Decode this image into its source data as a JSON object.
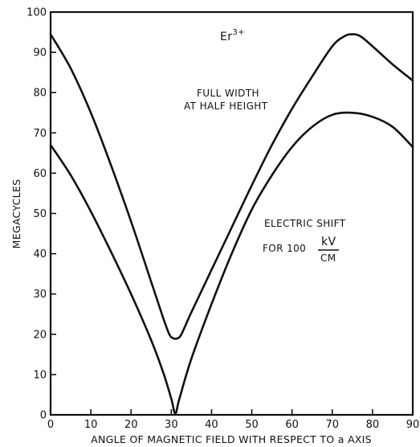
{
  "chart_data": {
    "type": "line",
    "title": "",
    "xlabel": "ANGLE OF MAGNETIC FIELD WITH RESPECT TO a AXIS",
    "ylabel": "MEGACYCLES",
    "xlim": [
      0,
      90
    ],
    "ylim": [
      0,
      100
    ],
    "xticks": [
      "0",
      "10",
      "20",
      "30",
      "40",
      "50",
      "60",
      "70",
      "80",
      "90"
    ],
    "yticks": [
      "0",
      "10",
      "20",
      "30",
      "40",
      "50",
      "60",
      "70",
      "80",
      "90",
      "100"
    ],
    "grid": false,
    "annotations": {
      "ion": "Er",
      "ion_charge": "3+",
      "fwhm_line1": "FULL WIDTH",
      "fwhm_line2": "AT HALF HEIGHT",
      "shift_line1": "ELECTRIC SHIFT",
      "shift_line2": "FOR 100",
      "shift_unit_num": "kV",
      "shift_unit_den": "CM"
    },
    "series": [
      {
        "name": "FULL WIDTH AT HALF HEIGHT",
        "points": [
          [
            0,
            94.5
          ],
          [
            5,
            86
          ],
          [
            10,
            75
          ],
          [
            15,
            62
          ],
          [
            20,
            48
          ],
          [
            25,
            33
          ],
          [
            28,
            24
          ],
          [
            29.5,
            20
          ],
          [
            30.5,
            19
          ],
          [
            31.5,
            19
          ],
          [
            32.5,
            20
          ],
          [
            35,
            25.5
          ],
          [
            40,
            36
          ],
          [
            45,
            46.5
          ],
          [
            50,
            57
          ],
          [
            55,
            67
          ],
          [
            60,
            76
          ],
          [
            65,
            84
          ],
          [
            70,
            91.5
          ],
          [
            73,
            94
          ],
          [
            75,
            94.5
          ],
          [
            77,
            94
          ],
          [
            80,
            91.5
          ],
          [
            85,
            87
          ],
          [
            90,
            83
          ]
        ]
      },
      {
        "name": "ELECTRIC SHIFT FOR 100 kV/CM",
        "points": [
          [
            0,
            67
          ],
          [
            5,
            59.5
          ],
          [
            10,
            50.5
          ],
          [
            15,
            40.5
          ],
          [
            20,
            30
          ],
          [
            25,
            18.5
          ],
          [
            28,
            10.5
          ],
          [
            30,
            4
          ],
          [
            31,
            0.3
          ],
          [
            32,
            4
          ],
          [
            35,
            14
          ],
          [
            40,
            27.5
          ],
          [
            45,
            40
          ],
          [
            50,
            51
          ],
          [
            55,
            59.5
          ],
          [
            60,
            66.5
          ],
          [
            65,
            71.5
          ],
          [
            70,
            74.5
          ],
          [
            75,
            75
          ],
          [
            80,
            74
          ],
          [
            85,
            71.5
          ],
          [
            90,
            66.5
          ]
        ]
      }
    ]
  }
}
